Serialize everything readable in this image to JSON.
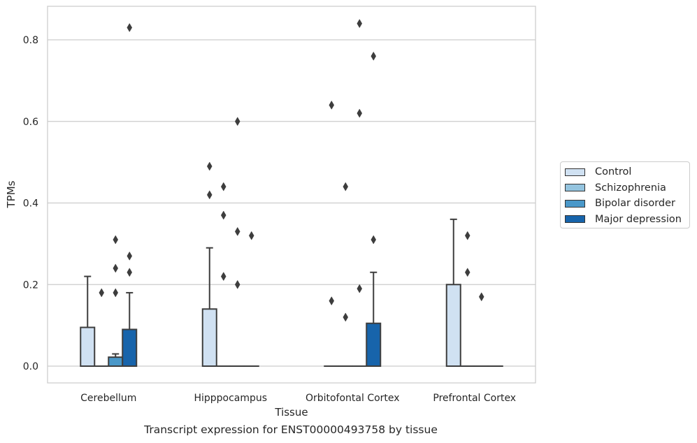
{
  "caption": "Transcript expression for ENST00000493758 by tissue",
  "chart_data": {
    "type": "box",
    "xlabel": "Tissue",
    "ylabel": "TPMs",
    "ylim": [
      -0.04,
      0.885
    ],
    "yticks": [
      "0.0",
      "0.2",
      "0.4",
      "0.6",
      "0.8"
    ],
    "grid": "horizontal",
    "legend_position": "right",
    "categories": [
      "Cerebellum",
      "Hipppocampus",
      "Orbitofontal Cortex",
      "Prefrontal Cortex"
    ],
    "series": [
      {
        "name": "Control",
        "color": "#d0e1f2",
        "boxes": [
          {
            "q1": 0.0,
            "median": 0.0,
            "q3": 0.095,
            "whislo": 0.0,
            "whishi": 0.22,
            "fliers": []
          },
          {
            "q1": 0.0,
            "median": 0.0,
            "q3": 0.14,
            "whislo": 0.0,
            "whishi": 0.29,
            "fliers": [
              0.42,
              0.49
            ]
          },
          {
            "q1": 0.0,
            "median": 0.0,
            "q3": 0.0,
            "whislo": 0.0,
            "whishi": 0.0,
            "fliers": [
              0.16,
              0.64
            ]
          },
          {
            "q1": 0.0,
            "median": 0.0,
            "q3": 0.2,
            "whislo": 0.0,
            "whishi": 0.36,
            "fliers": []
          }
        ]
      },
      {
        "name": "Schizophrenia",
        "color": "#94c4df",
        "boxes": [
          {
            "q1": 0.0,
            "median": 0.0,
            "q3": 0.0,
            "whislo": 0.0,
            "whishi": 0.0,
            "fliers": [
              0.18
            ]
          },
          {
            "q1": 0.0,
            "median": 0.0,
            "q3": 0.0,
            "whislo": 0.0,
            "whishi": 0.0,
            "fliers": [
              0.22,
              0.37,
              0.44
            ]
          },
          {
            "q1": 0.0,
            "median": 0.0,
            "q3": 0.0,
            "whislo": 0.0,
            "whishi": 0.0,
            "fliers": [
              0.12,
              0.44
            ]
          },
          {
            "q1": 0.0,
            "median": 0.0,
            "q3": 0.0,
            "whislo": 0.0,
            "whishi": 0.0,
            "fliers": [
              0.23,
              0.32
            ]
          }
        ]
      },
      {
        "name": "Bipolar disorder",
        "color": "#4a98c9",
        "boxes": [
          {
            "q1": 0.0,
            "median": 0.0,
            "q3": 0.022,
            "whislo": 0.0,
            "whishi": 0.03,
            "fliers": [
              0.18,
              0.24,
              0.31
            ]
          },
          {
            "q1": 0.0,
            "median": 0.0,
            "q3": 0.0,
            "whislo": 0.0,
            "whishi": 0.0,
            "fliers": [
              0.2,
              0.33,
              0.6
            ]
          },
          {
            "q1": 0.0,
            "median": 0.0,
            "q3": 0.0,
            "whislo": 0.0,
            "whishi": 0.0,
            "fliers": [
              0.19,
              0.62,
              0.84
            ]
          },
          {
            "q1": 0.0,
            "median": 0.0,
            "q3": 0.0,
            "whislo": 0.0,
            "whishi": 0.0,
            "fliers": [
              0.17
            ]
          }
        ]
      },
      {
        "name": "Major depression",
        "color": "#1764ab",
        "boxes": [
          {
            "q1": 0.0,
            "median": 0.0,
            "q3": 0.09,
            "whislo": 0.0,
            "whishi": 0.18,
            "fliers": [
              0.23,
              0.27,
              0.83
            ]
          },
          {
            "q1": 0.0,
            "median": 0.0,
            "q3": 0.0,
            "whislo": 0.0,
            "whishi": 0.0,
            "fliers": [
              0.32
            ]
          },
          {
            "q1": 0.0,
            "median": 0.0,
            "q3": 0.105,
            "whislo": 0.0,
            "whishi": 0.23,
            "fliers": [
              0.31,
              0.76
            ]
          },
          {
            "q1": 0.0,
            "median": 0.0,
            "q3": 0.0,
            "whislo": 0.0,
            "whishi": 0.0,
            "fliers": []
          }
        ]
      }
    ]
  }
}
